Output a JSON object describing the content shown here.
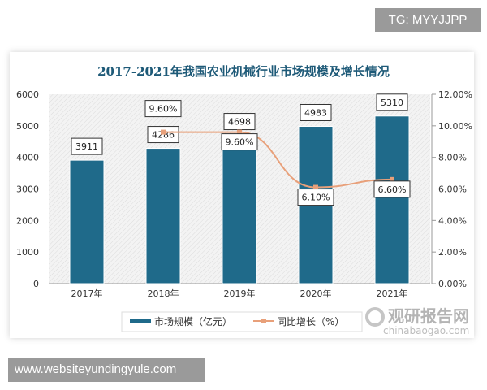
{
  "overlay": {
    "top_right": "TG: MYYJJPP",
    "bottom_left": "www.websiteyundingyule.com"
  },
  "watermark": {
    "cn": "观研报告网",
    "en": "chinabaogao.com"
  },
  "chart_data": {
    "type": "bar+line",
    "title": "2017-2021年我国农业机械行业市场规模及增长情况",
    "categories": [
      "2017年",
      "2018年",
      "2019年",
      "2020年",
      "2021年"
    ],
    "series": [
      {
        "name": "市场规模（亿元）",
        "type": "bar",
        "axis": "left",
        "color": "#1f6a8a",
        "values": [
          3911,
          4286,
          4698,
          4983,
          5310
        ],
        "labels": [
          "3911",
          "4286",
          "4698",
          "4983",
          "5310"
        ]
      },
      {
        "name": "同比增长（%）",
        "type": "line",
        "axis": "right",
        "color": "#e8a07a",
        "values": [
          null,
          9.6,
          9.6,
          6.1,
          6.6
        ],
        "labels": [
          "",
          "9.60%",
          "9.60%",
          "6.10%",
          "6.60%"
        ]
      }
    ],
    "y_left": {
      "range": [
        0,
        6000
      ],
      "ticks": [
        "0",
        "1000",
        "2000",
        "3000",
        "4000",
        "5000",
        "6000"
      ]
    },
    "y_right": {
      "range": [
        0,
        12
      ],
      "ticks": [
        "0.00%",
        "2.00%",
        "4.00%",
        "6.00%",
        "8.00%",
        "10.00%",
        "12.00%"
      ]
    },
    "legend": "bottom"
  }
}
